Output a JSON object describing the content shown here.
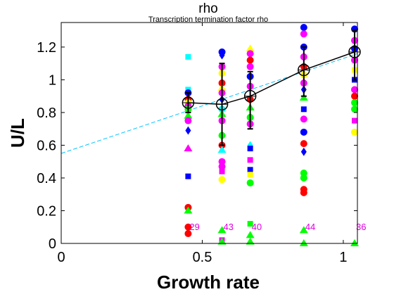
{
  "chart_data": {
    "type": "scatter",
    "title": "rho",
    "subtitle": "Transcription termination factor rho",
    "xlabel": "Growth rate",
    "ylabel": "U/L",
    "xlim": [
      0,
      1.05
    ],
    "ylim": [
      0,
      1.35
    ],
    "xticks": [
      0,
      0.5,
      1
    ],
    "xtick_labels": [
      "0",
      "0.5",
      "1"
    ],
    "yticks": [
      0,
      0.2,
      0.4,
      0.6,
      0.8,
      1,
      1.2
    ],
    "ytick_labels": [
      "0",
      "0.2",
      "0.4",
      "0.6",
      "0.8",
      "1",
      "1.2"
    ],
    "grid": false,
    "legend": "none",
    "groups": [
      {
        "x": 0.45,
        "count": "29",
        "mean": 0.86,
        "err_low": 0.8,
        "err_high": 0.92
      },
      {
        "x": 0.57,
        "count": "43",
        "mean": 0.85,
        "err_low": 0.6,
        "err_high": 1.1
      },
      {
        "x": 0.67,
        "count": "40",
        "mean": 0.9,
        "err_low": 0.7,
        "err_high": 1.05
      },
      {
        "x": 0.86,
        "count": "44",
        "mean": 1.06,
        "err_low": 0.9,
        "err_high": 1.2
      },
      {
        "x": 1.04,
        "count": "36",
        "mean": 1.17,
        "err_low": 1.0,
        "err_high": 1.3
      }
    ],
    "fit_line": {
      "x": [
        0,
        1.05
      ],
      "y": [
        0.55,
        1.16
      ],
      "color": "#00bfff"
    },
    "points": [
      {
        "x": 0.45,
        "y": 1.14,
        "color": "#00ffff",
        "marker": "square"
      },
      {
        "x": 0.45,
        "y": 0.94,
        "color": "#00ffff",
        "marker": "square"
      },
      {
        "x": 0.45,
        "y": 0.92,
        "color": "#0000ff",
        "marker": "circle"
      },
      {
        "x": 0.45,
        "y": 0.88,
        "color": "#ff0000",
        "marker": "circle"
      },
      {
        "x": 0.45,
        "y": 0.86,
        "color": "#ffff00",
        "marker": "circle"
      },
      {
        "x": 0.45,
        "y": 0.84,
        "color": "#ff00ff",
        "marker": "circle"
      },
      {
        "x": 0.45,
        "y": 0.82,
        "color": "#00ff00",
        "marker": "circle"
      },
      {
        "x": 0.45,
        "y": 0.78,
        "color": "#00ff00",
        "marker": "triangle"
      },
      {
        "x": 0.45,
        "y": 0.75,
        "color": "#ff00ff",
        "marker": "circle"
      },
      {
        "x": 0.45,
        "y": 0.69,
        "color": "#0000ff",
        "marker": "diamond"
      },
      {
        "x": 0.45,
        "y": 0.58,
        "color": "#ffff00",
        "marker": "triangle"
      },
      {
        "x": 0.45,
        "y": 0.58,
        "color": "#ff00ff",
        "marker": "triangle"
      },
      {
        "x": 0.45,
        "y": 0.41,
        "color": "#0000ff",
        "marker": "square"
      },
      {
        "x": 0.45,
        "y": 0.22,
        "color": "#ff0000",
        "marker": "circle"
      },
      {
        "x": 0.45,
        "y": 0.2,
        "color": "#00ff00",
        "marker": "triangle"
      },
      {
        "x": 0.45,
        "y": 0.1,
        "color": "#ff0000",
        "marker": "circle"
      },
      {
        "x": 0.45,
        "y": 0.06,
        "color": "#ff0000",
        "marker": "circle"
      },
      {
        "x": 0.57,
        "y": 1.17,
        "color": "#0000ff",
        "marker": "circle"
      },
      {
        "x": 0.57,
        "y": 1.15,
        "color": "#0000ff",
        "marker": "diamond"
      },
      {
        "x": 0.57,
        "y": 1.08,
        "color": "#ff00ff",
        "marker": "circle"
      },
      {
        "x": 0.57,
        "y": 1.04,
        "color": "#ffff00",
        "marker": "circle"
      },
      {
        "x": 0.57,
        "y": 0.98,
        "color": "#ff0000",
        "marker": "circle"
      },
      {
        "x": 0.57,
        "y": 0.95,
        "color": "#ffff00",
        "marker": "triangle"
      },
      {
        "x": 0.57,
        "y": 0.92,
        "color": "#ff00ff",
        "marker": "circle"
      },
      {
        "x": 0.57,
        "y": 0.88,
        "color": "#0000ff",
        "marker": "diamond"
      },
      {
        "x": 0.57,
        "y": 0.82,
        "color": "#00ffff",
        "marker": "circle"
      },
      {
        "x": 0.57,
        "y": 0.79,
        "color": "#00ff00",
        "marker": "triangle"
      },
      {
        "x": 0.57,
        "y": 0.75,
        "color": "#ff00ff",
        "marker": "circle"
      },
      {
        "x": 0.57,
        "y": 0.66,
        "color": "#00ff00",
        "marker": "circle"
      },
      {
        "x": 0.57,
        "y": 0.6,
        "color": "#ff0000",
        "marker": "circle"
      },
      {
        "x": 0.57,
        "y": 0.57,
        "color": "#00ffff",
        "marker": "triangle"
      },
      {
        "x": 0.57,
        "y": 0.5,
        "color": "#ff00ff",
        "marker": "circle"
      },
      {
        "x": 0.57,
        "y": 0.47,
        "color": "#ff00ff",
        "marker": "circle"
      },
      {
        "x": 0.57,
        "y": 0.44,
        "color": "#ff00ff",
        "marker": "square"
      },
      {
        "x": 0.57,
        "y": 0.39,
        "color": "#ffff00",
        "marker": "circle"
      },
      {
        "x": 0.57,
        "y": 0.08,
        "color": "#00ff00",
        "marker": "triangle"
      },
      {
        "x": 0.57,
        "y": 0.02,
        "color": "#ff00ff",
        "marker": "square"
      },
      {
        "x": 0.57,
        "y": 0.01,
        "color": "#00ff00",
        "marker": "triangle"
      },
      {
        "x": 0.67,
        "y": 1.19,
        "color": "#ffff00",
        "marker": "triangle"
      },
      {
        "x": 0.67,
        "y": 1.16,
        "color": "#ff00ff",
        "marker": "circle"
      },
      {
        "x": 0.67,
        "y": 1.12,
        "color": "#ff0000",
        "marker": "circle"
      },
      {
        "x": 0.67,
        "y": 1.08,
        "color": "#ff00ff",
        "marker": "circle"
      },
      {
        "x": 0.67,
        "y": 1.02,
        "color": "#0000ff",
        "marker": "circle"
      },
      {
        "x": 0.67,
        "y": 0.96,
        "color": "#ff00ff",
        "marker": "circle"
      },
      {
        "x": 0.67,
        "y": 0.88,
        "color": "#ff0000",
        "marker": "circle"
      },
      {
        "x": 0.67,
        "y": 0.83,
        "color": "#00ff00",
        "marker": "triangle"
      },
      {
        "x": 0.67,
        "y": 0.77,
        "color": "#00ff00",
        "marker": "circle"
      },
      {
        "x": 0.67,
        "y": 0.73,
        "color": "#ff00ff",
        "marker": "circle"
      },
      {
        "x": 0.67,
        "y": 0.6,
        "color": "#00ffff",
        "marker": "diamond"
      },
      {
        "x": 0.67,
        "y": 0.58,
        "color": "#0000ff",
        "marker": "square"
      },
      {
        "x": 0.67,
        "y": 0.51,
        "color": "#ff00ff",
        "marker": "square"
      },
      {
        "x": 0.67,
        "y": 0.45,
        "color": "#0000ff",
        "marker": "square"
      },
      {
        "x": 0.67,
        "y": 0.42,
        "color": "#ffff00",
        "marker": "square"
      },
      {
        "x": 0.67,
        "y": 0.37,
        "color": "#00ff00",
        "marker": "circle"
      },
      {
        "x": 0.67,
        "y": 0.12,
        "color": "#00ff00",
        "marker": "square"
      },
      {
        "x": 0.67,
        "y": 0.05,
        "color": "#00ff00",
        "marker": "triangle"
      },
      {
        "x": 0.67,
        "y": 0.01,
        "color": "#00ff00",
        "marker": "triangle"
      },
      {
        "x": 0.86,
        "y": 1.32,
        "color": "#0000ff",
        "marker": "circle"
      },
      {
        "x": 0.86,
        "y": 1.28,
        "color": "#ff00ff",
        "marker": "circle"
      },
      {
        "x": 0.86,
        "y": 1.2,
        "color": "#0000ff",
        "marker": "circle"
      },
      {
        "x": 0.86,
        "y": 1.14,
        "color": "#ff00ff",
        "marker": "circle"
      },
      {
        "x": 0.86,
        "y": 1.08,
        "color": "#ff0000",
        "marker": "circle"
      },
      {
        "x": 0.86,
        "y": 1.03,
        "color": "#ffff00",
        "marker": "circle"
      },
      {
        "x": 0.86,
        "y": 0.98,
        "color": "#ff00ff",
        "marker": "circle"
      },
      {
        "x": 0.86,
        "y": 0.94,
        "color": "#0000ff",
        "marker": "diamond"
      },
      {
        "x": 0.86,
        "y": 0.89,
        "color": "#00ff00",
        "marker": "triangle"
      },
      {
        "x": 0.86,
        "y": 0.82,
        "color": "#0000ff",
        "marker": "square"
      },
      {
        "x": 0.86,
        "y": 0.76,
        "color": "#ff00ff",
        "marker": "circle"
      },
      {
        "x": 0.86,
        "y": 0.68,
        "color": "#0000ff",
        "marker": "circle"
      },
      {
        "x": 0.86,
        "y": 0.61,
        "color": "#ff0000",
        "marker": "circle"
      },
      {
        "x": 0.86,
        "y": 0.56,
        "color": "#0000ff",
        "marker": "diamond"
      },
      {
        "x": 0.86,
        "y": 0.43,
        "color": "#00ff00",
        "marker": "circle"
      },
      {
        "x": 0.86,
        "y": 0.4,
        "color": "#00ff00",
        "marker": "circle"
      },
      {
        "x": 0.86,
        "y": 0.33,
        "color": "#ff0000",
        "marker": "circle"
      },
      {
        "x": 0.86,
        "y": 0.31,
        "color": "#ff0000",
        "marker": "circle"
      },
      {
        "x": 0.86,
        "y": 0.08,
        "color": "#00ff00",
        "marker": "triangle"
      },
      {
        "x": 0.86,
        "y": 0.0,
        "color": "#00ff00",
        "marker": "triangle"
      },
      {
        "x": 1.04,
        "y": 1.31,
        "color": "#0000ff",
        "marker": "circle"
      },
      {
        "x": 1.04,
        "y": 1.24,
        "color": "#ff00ff",
        "marker": "circle"
      },
      {
        "x": 1.04,
        "y": 1.19,
        "color": "#0000ff",
        "marker": "circle"
      },
      {
        "x": 1.04,
        "y": 1.12,
        "color": "#ff00ff",
        "marker": "circle"
      },
      {
        "x": 1.04,
        "y": 1.06,
        "color": "#ffff00",
        "marker": "square"
      },
      {
        "x": 1.04,
        "y": 1.0,
        "color": "#0000ff",
        "marker": "square"
      },
      {
        "x": 1.04,
        "y": 0.94,
        "color": "#ff00ff",
        "marker": "circle"
      },
      {
        "x": 1.04,
        "y": 0.9,
        "color": "#ff0000",
        "marker": "circle"
      },
      {
        "x": 1.04,
        "y": 0.86,
        "color": "#00ff00",
        "marker": "circle"
      },
      {
        "x": 1.04,
        "y": 0.82,
        "color": "#00ff00",
        "marker": "circle"
      },
      {
        "x": 1.04,
        "y": 0.75,
        "color": "#ff00ff",
        "marker": "square"
      },
      {
        "x": 1.04,
        "y": 0.68,
        "color": "#ffff00",
        "marker": "circle"
      },
      {
        "x": 1.04,
        "y": 0.0,
        "color": "#00ff00",
        "marker": "triangle"
      }
    ]
  }
}
